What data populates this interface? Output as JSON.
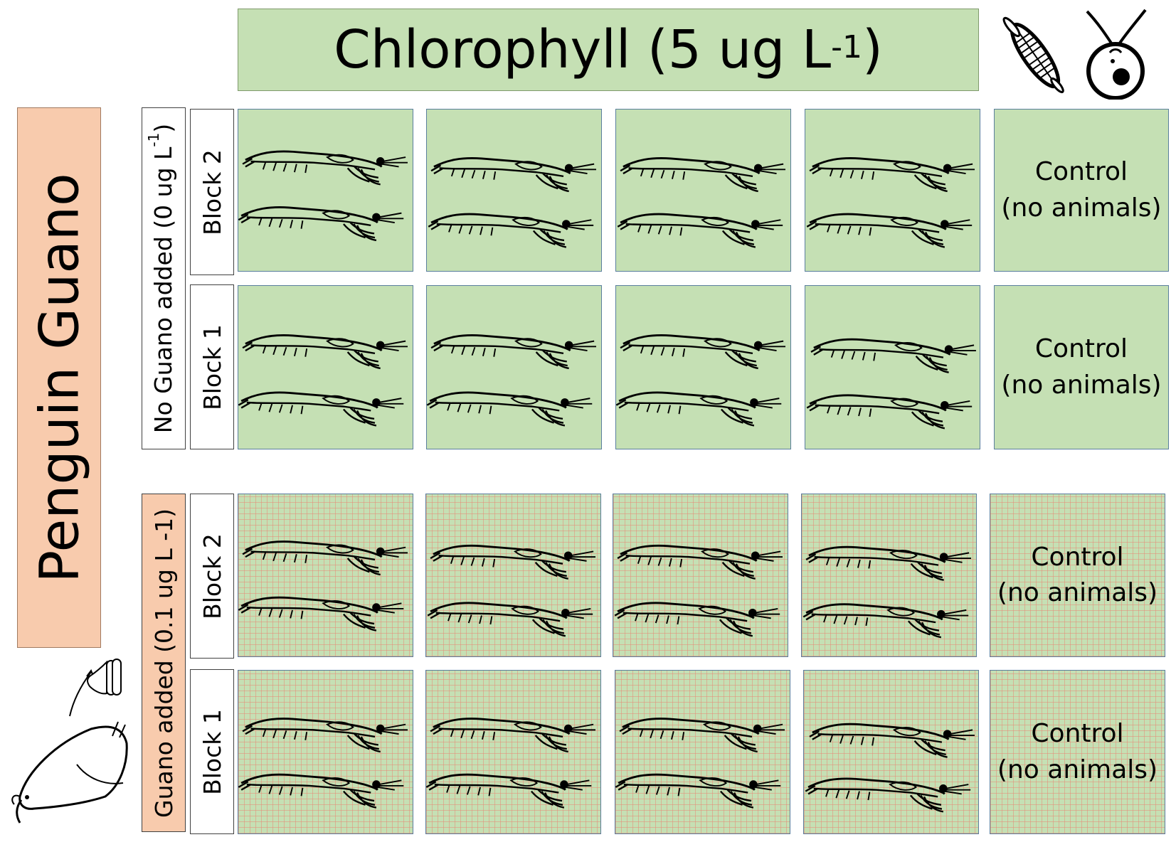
{
  "title": {
    "text": "Chlorophyll (5 ug L",
    "superscript": "-1",
    "close": ")"
  },
  "guano_label": "Penguin Guano",
  "treatments": [
    {
      "key": "no_guano",
      "text": "No Guano added (0 ug L",
      "superscript": "-1",
      "close": ")"
    },
    {
      "key": "guano",
      "text": "Guano added (0.1 ug L -1)"
    }
  ],
  "blocks": {
    "block2": "Block 2",
    "block1": "Block 1"
  },
  "control": {
    "line1": "Control",
    "line2": "(no animals)"
  },
  "icons": [
    "diatom-icon",
    "phytoplankton-icon",
    "krill-icon",
    "penguin-icon",
    "guano-icon"
  ],
  "colors": {
    "chlorophyll_green": "#c5e0b4",
    "guano_peach": "#f8cbad",
    "grid_pink": "#e68c78"
  }
}
